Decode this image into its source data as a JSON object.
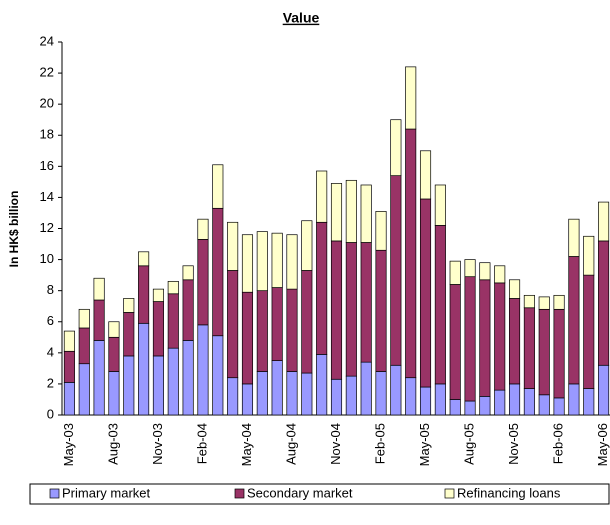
{
  "chart_data": {
    "type": "stacked_bar",
    "title": "Value",
    "y_label": "In HK$ billion",
    "categories": [
      "May-03",
      null,
      null,
      "Aug-03",
      null,
      null,
      "Nov-03",
      null,
      null,
      "Feb-04",
      null,
      null,
      "May-04",
      null,
      null,
      "Aug-04",
      null,
      null,
      "Nov-04",
      null,
      null,
      "Feb-05",
      null,
      null,
      "May-05",
      null,
      null,
      "Aug-05",
      null,
      null,
      "Nov-05",
      null,
      null,
      "Feb-06",
      null,
      null,
      "May-06"
    ],
    "series": [
      {
        "name": "Primary market",
        "color": "#9999ff",
        "values": [
          2.1,
          3.3,
          4.8,
          2.8,
          3.8,
          5.9,
          3.8,
          4.3,
          4.8,
          5.8,
          5.1,
          2.4,
          2.0,
          2.8,
          3.5,
          2.8,
          2.7,
          3.9,
          2.3,
          2.5,
          3.4,
          2.8,
          3.2,
          2.4,
          1.8,
          2.0,
          1.0,
          0.9,
          1.2,
          1.6,
          2.0,
          1.7,
          1.3,
          1.1,
          2.0,
          1.7,
          3.2
        ]
      },
      {
        "name": "Secondary market",
        "color": "#993366",
        "values": [
          2.0,
          2.3,
          2.6,
          2.2,
          2.8,
          3.7,
          3.5,
          3.5,
          3.9,
          5.5,
          8.2,
          6.9,
          5.9,
          5.2,
          4.7,
          5.3,
          6.6,
          8.5,
          8.9,
          8.6,
          7.7,
          7.8,
          12.2,
          16.0,
          12.1,
          10.2,
          7.4,
          8.0,
          7.5,
          6.9,
          5.5,
          5.2,
          5.5,
          5.7,
          8.2,
          7.3,
          8.0
        ]
      },
      {
        "name": "Refinancing loans",
        "color": "#ffffcc",
        "values": [
          1.3,
          1.2,
          1.4,
          1.0,
          0.9,
          0.9,
          0.8,
          0.8,
          0.9,
          1.3,
          2.8,
          3.1,
          3.7,
          3.8,
          3.5,
          3.5,
          3.2,
          3.3,
          3.7,
          4.0,
          3.7,
          2.5,
          3.6,
          4.0,
          3.1,
          2.6,
          1.5,
          1.1,
          1.1,
          1.1,
          1.2,
          0.8,
          0.8,
          0.9,
          2.4,
          2.5,
          2.5
        ]
      }
    ],
    "ylim": [
      0,
      24
    ],
    "yticks": [
      0,
      2,
      4,
      6,
      8,
      10,
      12,
      14,
      16,
      18,
      20,
      22,
      24
    ]
  }
}
